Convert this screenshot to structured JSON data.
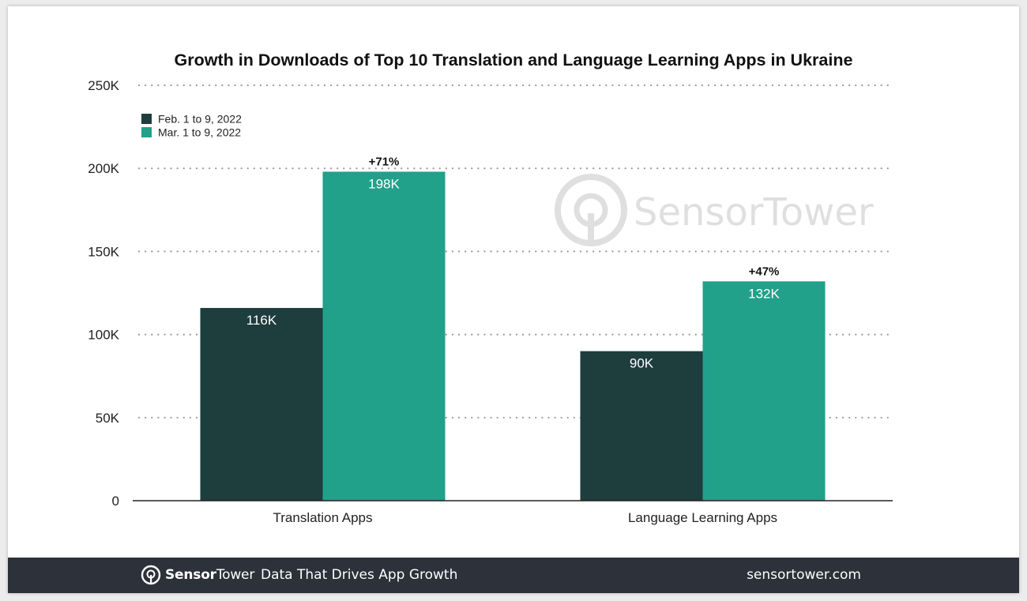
{
  "chart_data": {
    "type": "bar",
    "title": "Growth in Downloads of Top 10 Translation and Language Learning Apps in Ukraine",
    "categories": [
      "Translation Apps",
      "Language Learning Apps"
    ],
    "series": [
      {
        "name": "Feb. 1 to 9, 2022",
        "values": [
          116000,
          90000
        ],
        "labels": [
          "116K",
          "90K"
        ],
        "color": "#1e3d3d"
      },
      {
        "name": "Mar. 1 to 9, 2022",
        "values": [
          198000,
          132000
        ],
        "labels": [
          "198K",
          "132K"
        ],
        "color": "#21a08a"
      }
    ],
    "annotations": [
      "+71%",
      "+47%"
    ],
    "ylim": [
      0,
      250000
    ],
    "yticks": [
      0,
      50000,
      100000,
      150000,
      200000,
      250000
    ],
    "ytick_labels": [
      "0",
      "50K",
      "100K",
      "150K",
      "200K",
      "250K"
    ],
    "xlabel": "",
    "ylabel": "",
    "grid": true,
    "legend_position": "top-left"
  },
  "watermark": {
    "text": "SensorTower"
  },
  "footer": {
    "brand_bold": "Sensor",
    "brand_light": "Tower",
    "tagline": "Data That Drives App Growth",
    "site": "sensortower.com",
    "background": "#2c313a"
  }
}
